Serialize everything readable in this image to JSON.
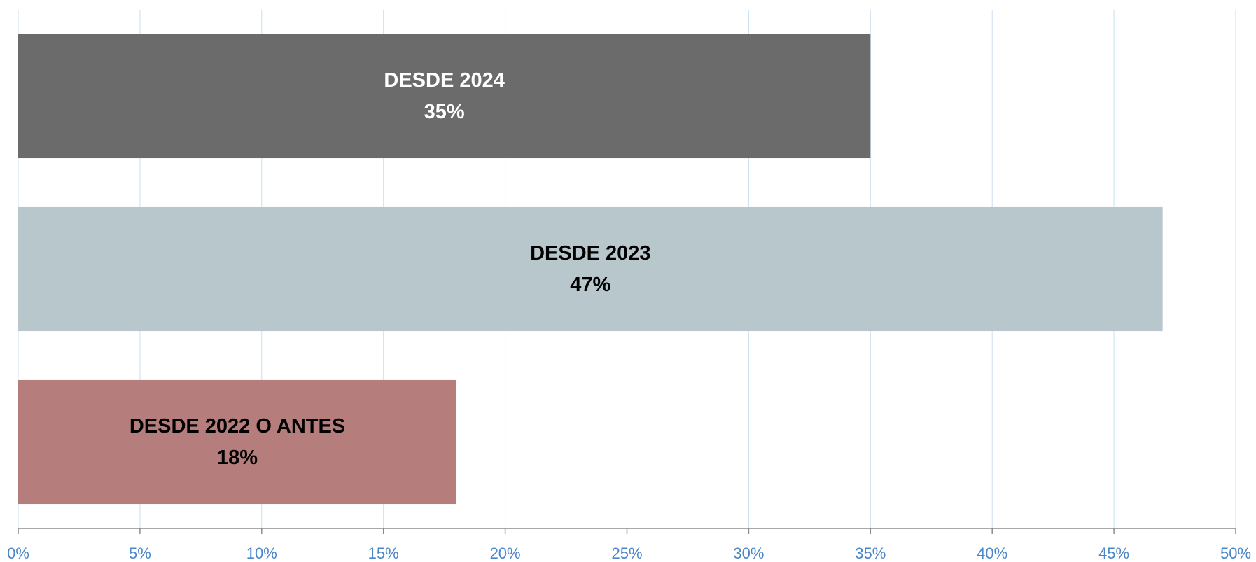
{
  "chart_data": {
    "type": "barh",
    "categories": [
      "DESDE 2024",
      "DESDE 2023",
      "DESDE 2022 O ANTES"
    ],
    "values": [
      35,
      47,
      18
    ],
    "value_labels": [
      "35%",
      "47%",
      "18%"
    ],
    "colors": [
      "#6b6b6b",
      "#b8c7cc",
      "#b57e7c"
    ],
    "label_colors": [
      "#ffffff",
      "#000000",
      "#000000"
    ],
    "xlim": [
      0,
      50
    ],
    "xticks": [
      {
        "value": 0,
        "label": "0%"
      },
      {
        "value": 5,
        "label": "5%"
      },
      {
        "value": 10,
        "label": "10%"
      },
      {
        "value": 15,
        "label": "15%"
      },
      {
        "value": 20,
        "label": "20%"
      },
      {
        "value": 25,
        "label": "25%"
      },
      {
        "value": 30,
        "label": "30%"
      },
      {
        "value": 35,
        "label": "35%"
      },
      {
        "value": 40,
        "label": "40%"
      },
      {
        "value": 45,
        "label": "45%"
      },
      {
        "value": 50,
        "label": "50%"
      }
    ],
    "grid": true
  }
}
